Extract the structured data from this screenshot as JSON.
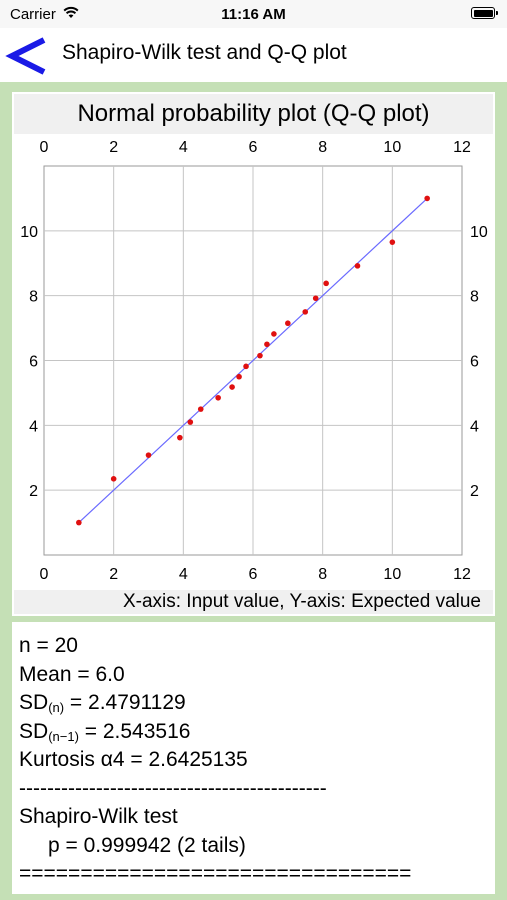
{
  "status_bar": {
    "carrier": "Carrier",
    "time": "11:16 AM"
  },
  "nav": {
    "title": "Shapiro-Wilk test and Q-Q plot",
    "back_icon": "chevron-left-icon",
    "accent_color": "#1a1ae6"
  },
  "chart_data": {
    "type": "scatter",
    "title": "Normal probability plot (Q-Q plot)",
    "caption": "X-axis: Input value,   Y-axis: Expected value",
    "xlim": [
      0,
      12
    ],
    "ylim": [
      0,
      12
    ],
    "x_ticks": [
      "0",
      "2",
      "4",
      "6",
      "8",
      "10",
      "12"
    ],
    "y_ticks": [
      "2",
      "4",
      "6",
      "8",
      "10"
    ],
    "grid": true,
    "point_color": "#e01010",
    "line_color": "#6a6aff",
    "fit_line": {
      "x": [
        1,
        11
      ],
      "y": [
        1,
        11
      ]
    },
    "points": [
      {
        "x": 1.0,
        "y": 1.0
      },
      {
        "x": 2.0,
        "y": 2.35
      },
      {
        "x": 3.0,
        "y": 3.08
      },
      {
        "x": 3.9,
        "y": 3.62
      },
      {
        "x": 4.2,
        "y": 4.1
      },
      {
        "x": 4.5,
        "y": 4.5
      },
      {
        "x": 5.0,
        "y": 4.85
      },
      {
        "x": 5.4,
        "y": 5.18
      },
      {
        "x": 5.6,
        "y": 5.5
      },
      {
        "x": 5.8,
        "y": 5.82
      },
      {
        "x": 6.2,
        "y": 6.15
      },
      {
        "x": 6.4,
        "y": 6.5
      },
      {
        "x": 6.6,
        "y": 6.82
      },
      {
        "x": 7.0,
        "y": 7.15
      },
      {
        "x": 7.5,
        "y": 7.5
      },
      {
        "x": 7.8,
        "y": 7.92
      },
      {
        "x": 8.1,
        "y": 8.38
      },
      {
        "x": 9.0,
        "y": 8.92
      },
      {
        "x": 10.0,
        "y": 9.65
      },
      {
        "x": 11.0,
        "y": 11.0
      }
    ]
  },
  "stats": {
    "n_line": "n = 20",
    "mean_line": "Mean = 6.0",
    "sd_n_label": "SD",
    "sd_n_sub": "(n)",
    "sd_n_value": " =  2.4791129",
    "sd_n1_label": "SD",
    "sd_n1_sub": "(n−1)",
    "sd_n1_value": " =  2.543516",
    "kurtosis_line": "Kurtosis α4 = 2.6425135",
    "dash_line": "--------------------------------------------",
    "test_name": "Shapiro-Wilk test",
    "p_line": "p = 0.999942 (2 tails)",
    "equals_line": "================================"
  }
}
